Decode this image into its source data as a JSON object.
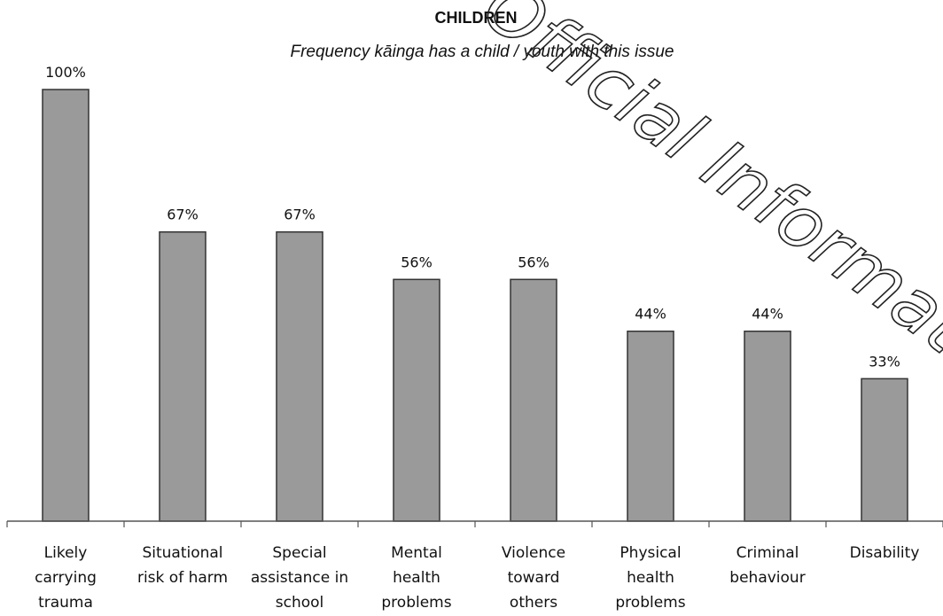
{
  "chart_data": {
    "type": "bar",
    "title": "CHILDREN",
    "subtitle": "Frequency kāinga has a child / youth with this issue",
    "categories": [
      [
        "Likely",
        "carrying",
        "trauma"
      ],
      [
        "Situational",
        "risk of harm"
      ],
      [
        "Special",
        "assistance in",
        "school"
      ],
      [
        "Mental",
        "health",
        "problems"
      ],
      [
        "Violence",
        "toward",
        "others"
      ],
      [
        "Physical",
        "health",
        "problems"
      ],
      [
        "Criminal",
        "behaviour"
      ],
      [
        "Disability"
      ]
    ],
    "values": [
      100,
      67,
      67,
      56,
      56,
      44,
      44,
      33
    ],
    "data_labels": [
      "100%",
      "67%",
      "67%",
      "56%",
      "56%",
      "44%",
      "44%",
      "33%"
    ],
    "ylim": [
      0,
      100
    ],
    "grid": false,
    "legend": "none",
    "bar_color": "#9a9a9a",
    "watermark": "Official Information A"
  }
}
